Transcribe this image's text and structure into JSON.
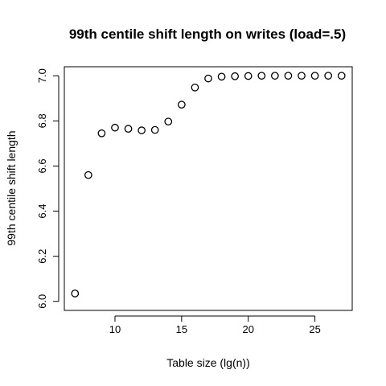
{
  "chart_data": {
    "type": "scatter",
    "title": "99th centile shift length on writes (load=.5)",
    "xlabel": "Table size (lg(n))",
    "ylabel": "99th centile shift length",
    "xlim": [
      6.2,
      27.8
    ],
    "ylim": [
      5.96,
      7.04
    ],
    "xticks": [
      10,
      15,
      20,
      25
    ],
    "xtick_labels": [
      "10",
      "15",
      "20",
      "25"
    ],
    "yticks": [
      6.0,
      6.2,
      6.4,
      6.6,
      6.8,
      7.0
    ],
    "ytick_labels": [
      "6.0",
      "6.2",
      "6.4",
      "6.6",
      "6.8",
      "7.0"
    ],
    "marker": "open-circle",
    "grid": false,
    "legend": "none",
    "points": [
      {
        "x": 7,
        "y": 6.035
      },
      {
        "x": 8,
        "y": 6.56
      },
      {
        "x": 9,
        "y": 6.745
      },
      {
        "x": 10,
        "y": 6.77
      },
      {
        "x": 11,
        "y": 6.765
      },
      {
        "x": 12,
        "y": 6.758
      },
      {
        "x": 13,
        "y": 6.76
      },
      {
        "x": 14,
        "y": 6.797
      },
      {
        "x": 15,
        "y": 6.872
      },
      {
        "x": 16,
        "y": 6.948
      },
      {
        "x": 17,
        "y": 6.988
      },
      {
        "x": 18,
        "y": 6.996
      },
      {
        "x": 19,
        "y": 6.998
      },
      {
        "x": 20,
        "y": 6.999
      },
      {
        "x": 21,
        "y": 7.0
      },
      {
        "x": 22,
        "y": 7.0
      },
      {
        "x": 23,
        "y": 7.0
      },
      {
        "x": 24,
        "y": 7.0
      },
      {
        "x": 25,
        "y": 7.0
      },
      {
        "x": 26,
        "y": 7.0
      },
      {
        "x": 27,
        "y": 7.0
      }
    ]
  }
}
